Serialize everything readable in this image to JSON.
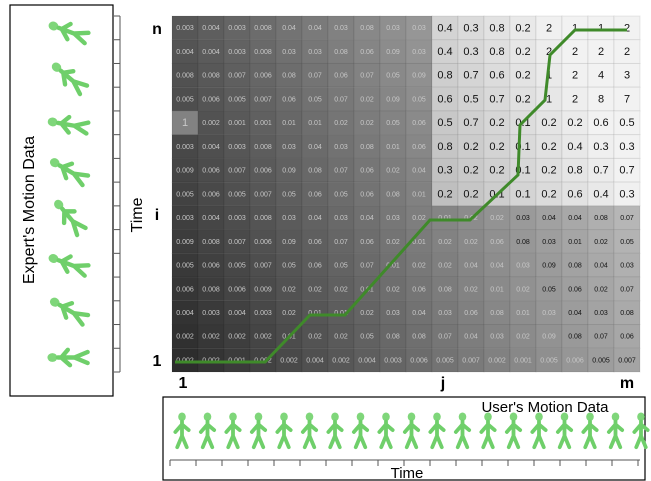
{
  "axis_labels": {
    "row_top": "n",
    "row_mid": "i",
    "row_bottom": "1",
    "col_left": "1",
    "col_mid": "j",
    "col_right": "m"
  },
  "expert_label": "Expert's Motion Data",
  "user_label": "User's Motion Data",
  "expert_time": "Time",
  "user_time": "Time",
  "matrix": {
    "rows": [
      [
        0.003,
        0.004,
        0.003,
        0.008,
        0.04,
        0.04,
        0.03,
        0.08,
        0.03,
        0.03,
        0.4,
        0.3,
        0.8,
        0.2,
        2,
        1,
        1,
        2
      ],
      [
        0.004,
        0.004,
        0.003,
        0.008,
        0.03,
        0.03,
        0.08,
        0.06,
        0.09,
        0.03,
        0.4,
        0.3,
        0.8,
        0.2,
        2,
        2,
        2,
        2
      ],
      [
        0.008,
        0.008,
        0.007,
        0.006,
        0.08,
        0.07,
        0.06,
        0.07,
        0.05,
        0.09,
        0.8,
        0.7,
        0.6,
        0.2,
        1,
        2,
        4,
        3
      ],
      [
        0.005,
        0.006,
        0.005,
        0.007,
        0.06,
        0.05,
        0.07,
        0.02,
        0.09,
        0.05,
        0.6,
        0.5,
        0.7,
        0.2,
        1,
        2,
        8,
        7
      ],
      [
        1,
        0.002,
        0.001,
        0.001,
        0.01,
        0.01,
        0.02,
        0.02,
        0.05,
        0.06,
        0.5,
        0.7,
        0.2,
        0.1,
        0.2,
        0.2,
        0.6,
        0.5
      ],
      [
        0.003,
        0.004,
        0.003,
        0.008,
        0.03,
        0.04,
        0.03,
        0.08,
        0.01,
        0.06,
        0.8,
        0.2,
        0.2,
        0.1,
        0.2,
        0.4,
        0.3,
        0.3
      ],
      [
        0.009,
        0.006,
        0.007,
        0.006,
        0.09,
        0.08,
        0.07,
        0.06,
        0.02,
        0.04,
        0.3,
        0.2,
        0.2,
        0.1,
        0.2,
        0.8,
        0.7,
        0.7
      ],
      [
        0.005,
        0.006,
        0.005,
        0.007,
        0.05,
        0.06,
        0.05,
        0.06,
        0.08,
        0.01,
        0.2,
        0.2,
        0.1,
        0.1,
        0.2,
        0.6,
        0.4,
        0.3
      ],
      [
        0.003,
        0.004,
        0.003,
        0.008,
        0.03,
        0.04,
        0.03,
        0.04,
        0.03,
        0.02,
        0.01,
        0.02,
        0.02,
        0.03,
        0.04,
        0.04,
        0.08,
        0.07
      ],
      [
        0.009,
        0.008,
        0.007,
        0.006,
        0.09,
        0.06,
        0.07,
        0.06,
        0.02,
        0.01,
        0.02,
        0.02,
        0.06,
        0.08,
        0.03,
        0.01,
        0.02,
        0.05
      ],
      [
        0.005,
        0.006,
        0.005,
        0.007,
        0.05,
        0.06,
        0.05,
        0.07,
        0.01,
        0.02,
        0.02,
        0.04,
        0.04,
        0.03,
        0.09,
        0.08,
        0.04,
        0.03
      ],
      [
        0.006,
        0.008,
        0.006,
        0.009,
        0.02,
        0.02,
        0.02,
        0.01,
        0.02,
        0.06,
        0.08,
        0.02,
        0.01,
        0.02,
        0.05,
        0.06,
        0.02,
        0.07
      ],
      [
        0.004,
        0.003,
        0.004,
        0.003,
        0.02,
        0.01,
        0.01,
        0.02,
        0.03,
        0.04,
        0.03,
        0.06,
        0.08,
        0.01,
        0.03,
        0.04,
        0.03,
        0.08
      ],
      [
        0.002,
        0.002,
        0.002,
        0.002,
        0.01,
        0.02,
        0.02,
        0.05,
        0.08,
        0.08,
        0.07,
        0.04,
        0.03,
        0.02,
        0.09,
        0.08,
        0.07,
        0.06
      ],
      [
        0.002,
        0.002,
        0.001,
        0.002,
        0.002,
        0.004,
        0.002,
        0.004,
        0.003,
        0.006,
        0.005,
        0.007,
        0.002,
        0.001,
        0.005,
        0.006,
        0.005,
        0.007
      ]
    ]
  }
}
